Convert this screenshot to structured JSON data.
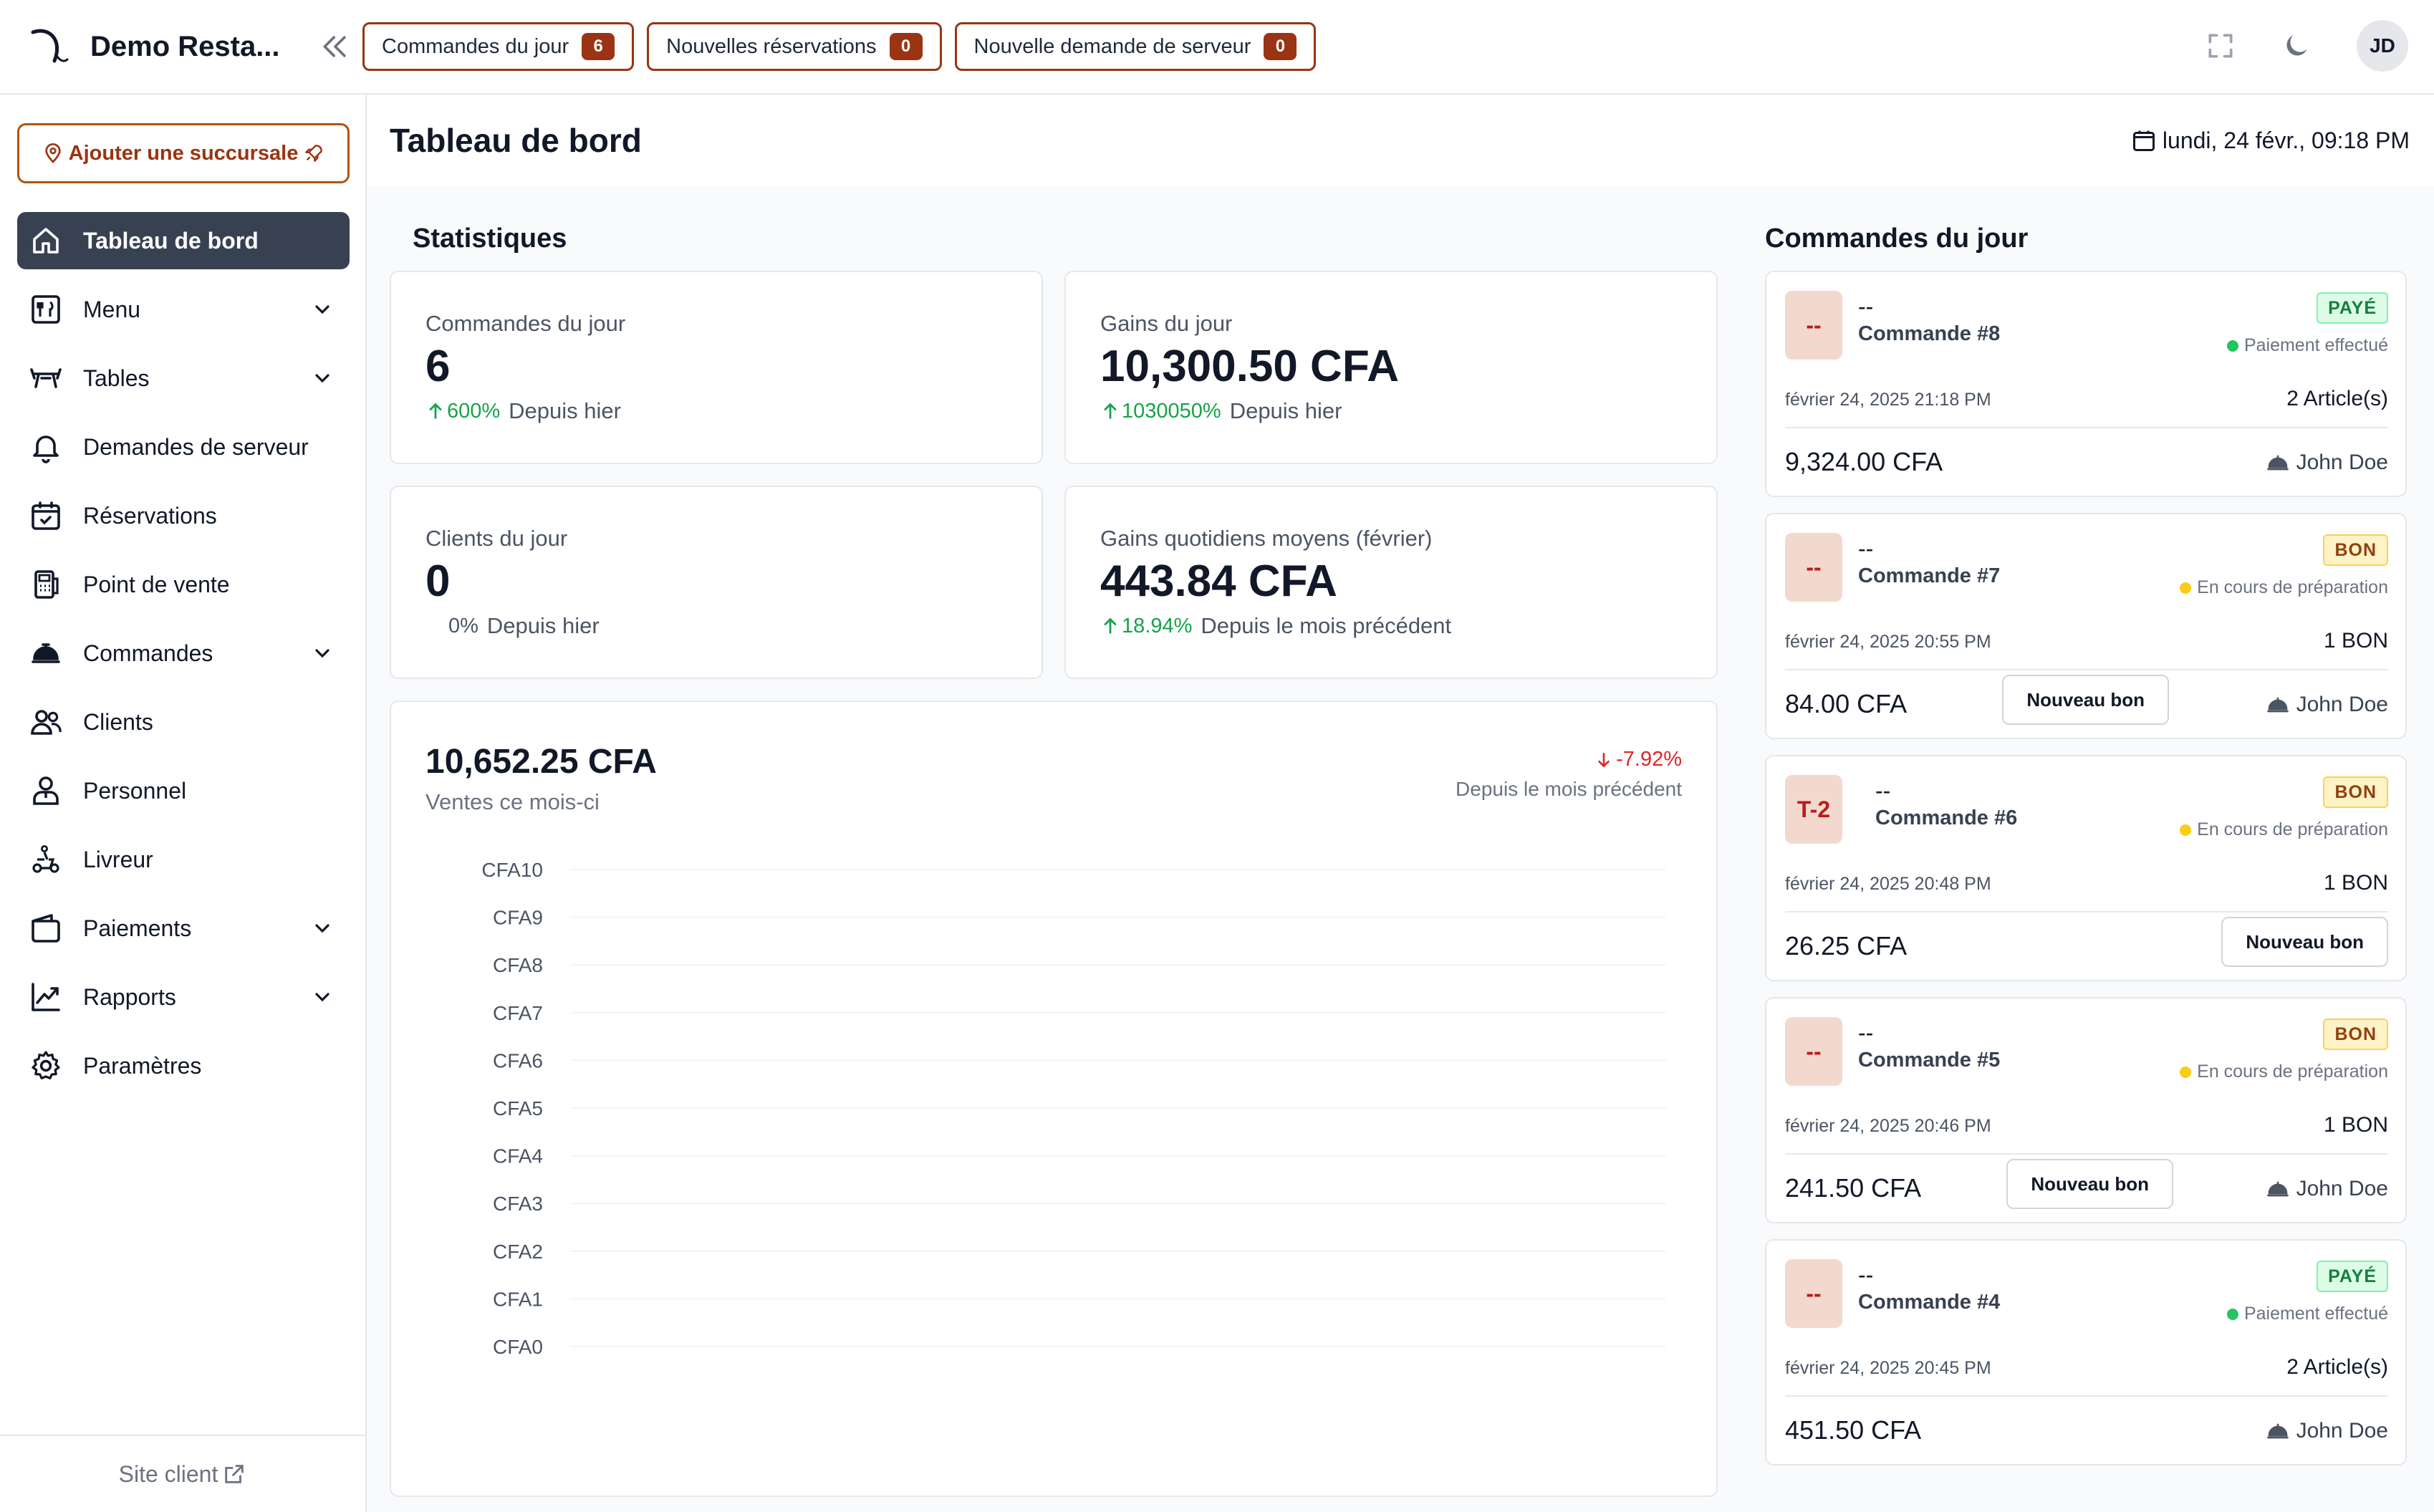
{
  "header": {
    "brand": "Demo Resta...",
    "buttons": [
      {
        "label": "Commandes du jour",
        "count": "6"
      },
      {
        "label": "Nouvelles réservations",
        "count": "0"
      },
      {
        "label": "Nouvelle demande de serveur",
        "count": "0"
      }
    ],
    "avatar": "JD",
    "icons": [
      "fullscreen-icon",
      "moon-icon"
    ]
  },
  "sidebar": {
    "add_branch": "Ajouter une succursale",
    "items": [
      {
        "label": "Tableau de bord",
        "icon": "home-icon",
        "active": true,
        "expandable": false
      },
      {
        "label": "Menu",
        "icon": "menu-book-icon",
        "expandable": true
      },
      {
        "label": "Tables",
        "icon": "table-icon",
        "expandable": true
      },
      {
        "label": "Demandes de serveur",
        "icon": "bell-icon",
        "expandable": false
      },
      {
        "label": "Réservations",
        "icon": "calendar-check-icon",
        "expandable": false
      },
      {
        "label": "Point de vente",
        "icon": "pos-icon",
        "expandable": false
      },
      {
        "label": "Commandes",
        "icon": "cloche-icon",
        "expandable": true
      },
      {
        "label": "Clients",
        "icon": "users-icon",
        "expandable": false
      },
      {
        "label": "Personnel",
        "icon": "staff-icon",
        "expandable": false
      },
      {
        "label": "Livreur",
        "icon": "scooter-icon",
        "expandable": false
      },
      {
        "label": "Paiements",
        "icon": "wallet-icon",
        "expandable": true
      },
      {
        "label": "Rapports",
        "icon": "chart-line-icon",
        "expandable": true
      },
      {
        "label": "Paramètres",
        "icon": "gear-icon",
        "expandable": false
      }
    ],
    "footer": "Site client"
  },
  "page": {
    "title": "Tableau de bord",
    "date": "lundi, 24 févr., 09:18 PM"
  },
  "stats": {
    "title": "Statistiques",
    "cards": [
      {
        "label": "Commandes du jour",
        "value": "6",
        "delta": "600%",
        "delta_dir": "up",
        "delta_label": "Depuis hier"
      },
      {
        "label": "Gains du jour",
        "value": "10,300.50 CFA",
        "delta": "1030050%",
        "delta_dir": "up",
        "delta_label": "Depuis hier"
      },
      {
        "label": "Clients du jour",
        "value": "0",
        "delta": "0%",
        "delta_dir": "none",
        "delta_label": "Depuis hier"
      },
      {
        "label": "Gains quotidiens moyens (février)",
        "value": "443.84 CFA",
        "delta": "18.94%",
        "delta_dir": "up",
        "delta_label": "Depuis le mois précédent"
      }
    ]
  },
  "sales": {
    "total": "10,652.25 CFA",
    "subtitle": "Ventes ce mois-ci",
    "delta": "-7.92%",
    "delta_label": "Depuis le mois précédent"
  },
  "chart_data": {
    "type": "line",
    "title": "",
    "xlabel": "",
    "ylabel": "",
    "y_ticks": [
      "CFA10",
      "CFA9",
      "CFA8",
      "CFA7",
      "CFA6",
      "CFA5",
      "CFA4",
      "CFA3",
      "CFA2",
      "CFA1",
      "CFA0"
    ],
    "ylim": [
      0,
      10
    ],
    "grid": true,
    "series": []
  },
  "orders": {
    "title": "Commandes du jour",
    "new_bon_label": "Nouveau bon",
    "list": [
      {
        "table": "--",
        "client": "--",
        "number": "Commande #8",
        "status": "PAYÉ",
        "status_kind": "paid",
        "state": "Paiement effectué",
        "state_color": "#22c55e",
        "datetime": "février 24, 2025 21:18 PM",
        "items": "2 Article(s)",
        "amount": "9,324.00 CFA",
        "waiter": "John Doe",
        "new_bon": false
      },
      {
        "table": "--",
        "client": "--",
        "number": "Commande #7",
        "status": "BON",
        "status_kind": "bon",
        "state": "En cours de préparation",
        "state_color": "#facc15",
        "datetime": "février 24, 2025 20:55 PM",
        "items": "1 BON",
        "amount": "84.00 CFA",
        "waiter": "John Doe",
        "new_bon": true
      },
      {
        "table": "T-2",
        "client": "--",
        "number": "Commande #6",
        "status": "BON",
        "status_kind": "bon",
        "state": "En cours de préparation",
        "state_color": "#facc15",
        "datetime": "février 24, 2025 20:48 PM",
        "items": "1 BON",
        "amount": "26.25 CFA",
        "waiter": "",
        "new_bon": true
      },
      {
        "table": "--",
        "client": "--",
        "number": "Commande #5",
        "status": "BON",
        "status_kind": "bon",
        "state": "En cours de préparation",
        "state_color": "#facc15",
        "datetime": "février 24, 2025 20:46 PM",
        "items": "1 BON",
        "amount": "241.50 CFA",
        "waiter": "John Doe",
        "new_bon": true
      },
      {
        "table": "--",
        "client": "--",
        "number": "Commande #4",
        "status": "PAYÉ",
        "status_kind": "paid",
        "state": "Paiement effectué",
        "state_color": "#22c55e",
        "datetime": "février 24, 2025 20:45 PM",
        "items": "2 Article(s)",
        "amount": "451.50 CFA",
        "waiter": "John Doe",
        "new_bon": false
      }
    ]
  }
}
